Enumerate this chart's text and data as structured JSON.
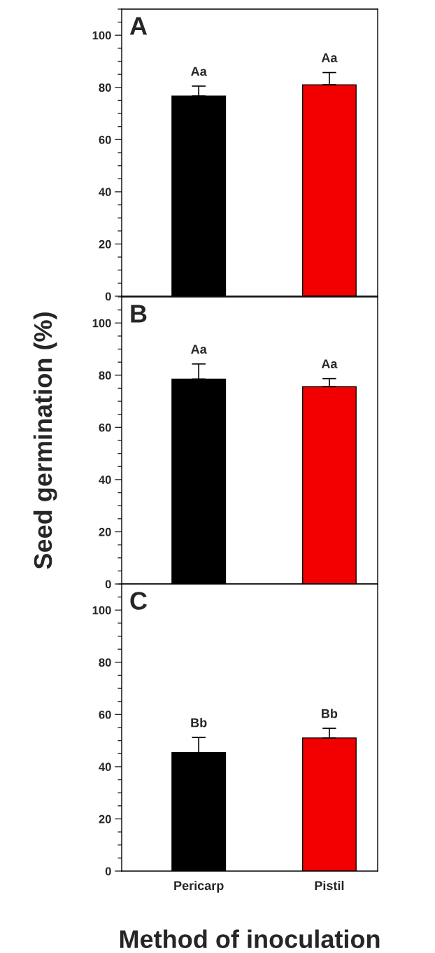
{
  "chart_data": [
    {
      "type": "bar",
      "title": "A",
      "categories": [
        "Pericarp",
        "Pistil"
      ],
      "values": [
        76.7,
        81.0
      ],
      "colors": [
        "#000000",
        "#f20000"
      ],
      "errors": [
        [
          76.7,
          80.5
        ],
        [
          81.0,
          85.7
        ]
      ],
      "ylim": [
        0,
        110
      ],
      "yticks": [
        0,
        20,
        40,
        60,
        80,
        100
      ],
      "tick_labels": "y",
      "annotations": [
        {
          "text": "Aa",
          "x": "Pericarp",
          "y": 80.5
        },
        {
          "text": "Aa",
          "x": "Pistil",
          "y": 85.7
        }
      ]
    },
    {
      "type": "bar",
      "title": "B",
      "ylabel": "Seed germination (%)",
      "categories": [
        "Pericarp",
        "Pistil"
      ],
      "values": [
        78.5,
        75.6
      ],
      "colors": [
        "#000000",
        "#f20000"
      ],
      "errors": [
        [
          78.5,
          84.3
        ],
        [
          75.6,
          78.7
        ]
      ],
      "ylim": [
        0,
        110
      ],
      "yticks": [
        0,
        20,
        40,
        60,
        80,
        100
      ],
      "tick_labels": "y",
      "annotations": [
        {
          "text": "Aa",
          "x": "Pericarp",
          "y": 84.3
        },
        {
          "text": "Aa",
          "x": "Pistil",
          "y": 78.7
        }
      ]
    },
    {
      "type": "bar",
      "title": "C",
      "xlabel": "Method of inoculation",
      "categories": [
        "Pericarp",
        "Pistil"
      ],
      "values": [
        45.4,
        51.0
      ],
      "colors": [
        "#000000",
        "#f20000"
      ],
      "errors": [
        [
          45.4,
          51.2
        ],
        [
          51.0,
          54.7
        ]
      ],
      "ylim": [
        0,
        110
      ],
      "yticks": [
        0,
        20,
        40,
        60,
        80,
        100
      ],
      "annotations": [
        {
          "text": "Bb",
          "x": "Pericarp",
          "y": 51.2
        },
        {
          "text": "Bb",
          "x": "Pistil",
          "y": 54.7
        }
      ]
    }
  ]
}
